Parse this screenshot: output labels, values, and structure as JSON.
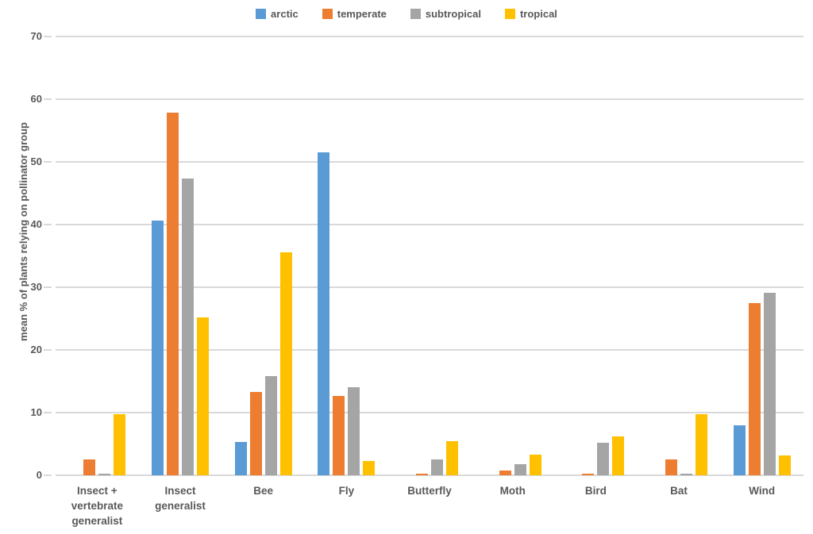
{
  "chart_data": {
    "type": "bar",
    "title": "",
    "xlabel": "",
    "ylabel": "mean % of plants relying on pollinator group",
    "ylim": [
      0,
      70
    ],
    "ytick_step": 10,
    "yticks": [
      0,
      10,
      20,
      30,
      40,
      50,
      60,
      70
    ],
    "grid": "horizontal",
    "legend_position": "top-center",
    "categories": [
      "Insect +\nvertebrate\ngeneralist",
      "Insect generalist",
      "Bee",
      "Fly",
      "Butterfly",
      "Moth",
      "Bird",
      "Bat",
      "Wind"
    ],
    "series": [
      {
        "name": "arctic",
        "color": "#5B9BD5",
        "values": [
          0,
          40.6,
          5.3,
          51.5,
          0,
          0,
          0,
          0,
          8.0
        ]
      },
      {
        "name": "temperate",
        "color": "#ED7D31",
        "values": [
          2.5,
          57.8,
          13.3,
          12.6,
          0.3,
          0.8,
          0.3,
          2.5,
          27.5
        ]
      },
      {
        "name": "subtropical",
        "color": "#A5A5A5",
        "values": [
          0.2,
          47.4,
          15.8,
          14.0,
          2.5,
          1.8,
          5.2,
          0.2,
          29.1
        ]
      },
      {
        "name": "tropical",
        "color": "#FFC000",
        "values": [
          9.8,
          25.2,
          35.6,
          2.3,
          5.5,
          3.3,
          6.2,
          9.8,
          3.2
        ]
      }
    ],
    "colors": {
      "text": "#595959",
      "gridline": "#d9d9d9",
      "background": "#ffffff"
    }
  }
}
